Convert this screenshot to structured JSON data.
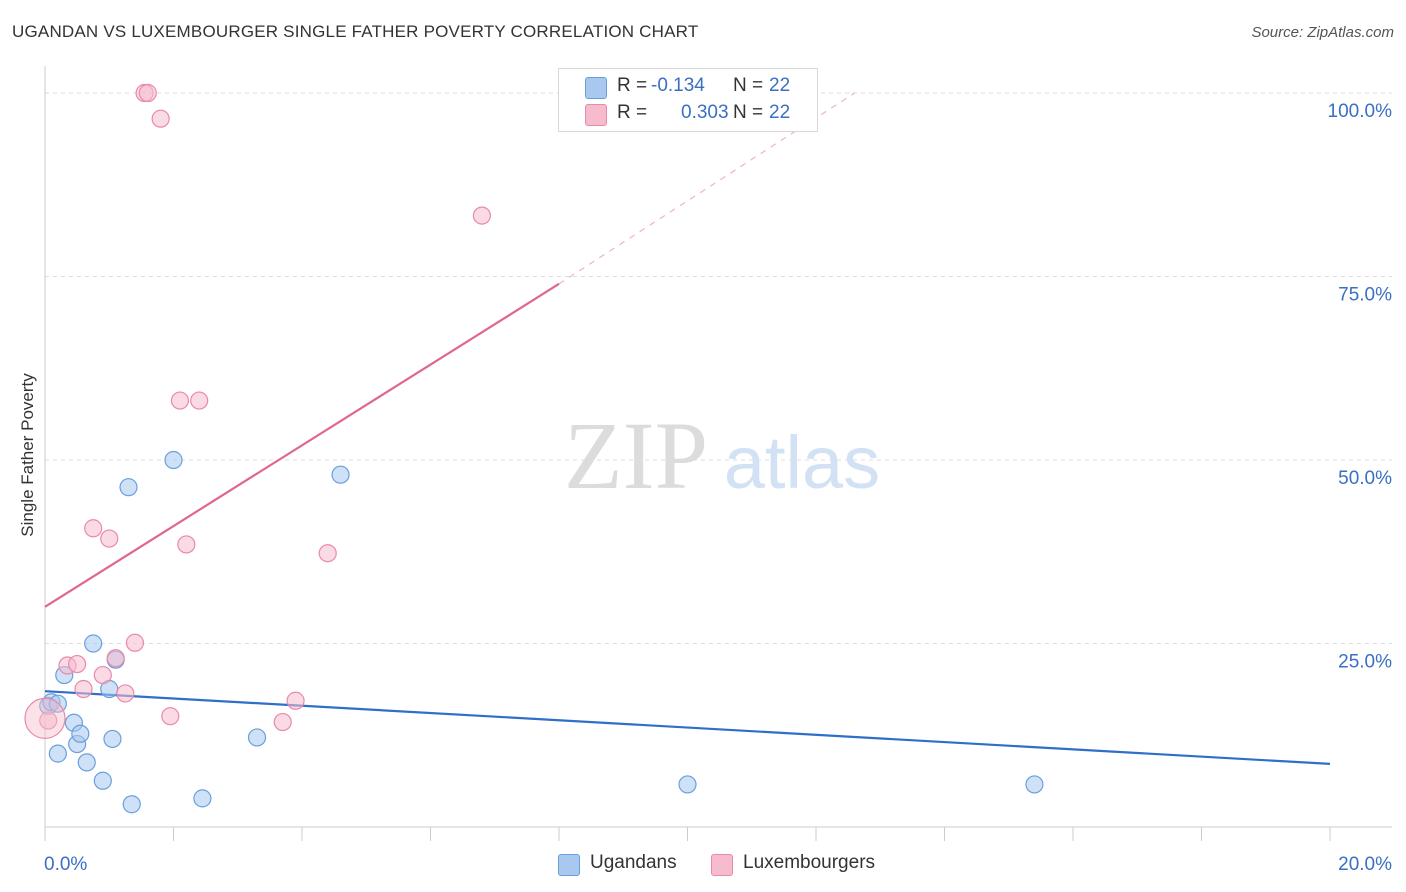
{
  "header": {
    "title": "UGANDAN VS LUXEMBOURGER SINGLE FATHER POVERTY CORRELATION CHART",
    "source": "Source: ZipAtlas.com"
  },
  "watermark": {
    "zip": "ZIP",
    "atlas": "atlas"
  },
  "colors": {
    "ugandans_fill": "#a8c8f0",
    "ugandans_stroke": "#6a9fdc",
    "ugandans_line": "#2f6fc9",
    "luxembourgers_fill": "#f6bccd",
    "luxembourgers_stroke": "#e98aa8",
    "luxembourgers_line": "#e06690",
    "tick_label": "#3a6fc4"
  },
  "legend": {
    "r_label": "R =",
    "n_label": "N =",
    "items": [
      {
        "r": "-0.134",
        "n": "22"
      },
      {
        "r": "0.303",
        "n": "22"
      }
    ]
  },
  "chart_data": {
    "type": "scatter",
    "title": "UGANDAN VS LUXEMBOURGER SINGLE FATHER POVERTY CORRELATION CHART",
    "xlabel": "",
    "ylabel": "Single Father Poverty",
    "xlim": [
      0,
      20
    ],
    "ylim": [
      0,
      103
    ],
    "x_tick_labels": [
      "0.0%",
      "20.0%"
    ],
    "y_ticks": [
      25,
      50,
      75,
      100
    ],
    "y_tick_labels": [
      "25.0%",
      "50.0%",
      "75.0%",
      "100.0%"
    ],
    "grid": "horizontal dashed",
    "legend_position": "top-center",
    "series": [
      {
        "name": "Ugandans",
        "r": -0.134,
        "n": 22,
        "trend": {
          "x": [
            0,
            20
          ],
          "y": [
            18.5,
            8.6
          ]
        },
        "points": [
          {
            "x": 0.05,
            "y": 16.5
          },
          {
            "x": 0.1,
            "y": 17.0
          },
          {
            "x": 0.2,
            "y": 16.8
          },
          {
            "x": 0.2,
            "y": 10.0
          },
          {
            "x": 0.3,
            "y": 20.7
          },
          {
            "x": 0.45,
            "y": 14.2
          },
          {
            "x": 0.5,
            "y": 11.3
          },
          {
            "x": 0.55,
            "y": 12.7
          },
          {
            "x": 0.65,
            "y": 8.8
          },
          {
            "x": 0.75,
            "y": 25.0
          },
          {
            "x": 0.9,
            "y": 6.3
          },
          {
            "x": 1.0,
            "y": 18.8
          },
          {
            "x": 1.05,
            "y": 12.0
          },
          {
            "x": 1.1,
            "y": 22.8
          },
          {
            "x": 1.3,
            "y": 46.3
          },
          {
            "x": 1.35,
            "y": 3.1
          },
          {
            "x": 2.0,
            "y": 50.0
          },
          {
            "x": 2.45,
            "y": 3.9
          },
          {
            "x": 3.3,
            "y": 12.2
          },
          {
            "x": 4.6,
            "y": 48.0
          },
          {
            "x": 10.0,
            "y": 5.8
          },
          {
            "x": 15.4,
            "y": 5.8
          }
        ]
      },
      {
        "name": "Luxembourgers",
        "r": 0.303,
        "n": 22,
        "trend": {
          "x": [
            0,
            8.0,
            12.6
          ],
          "y": [
            30.0,
            74.0,
            100.0
          ]
        },
        "points": [
          {
            "x": 0.05,
            "y": 14.5
          },
          {
            "x": 0.35,
            "y": 22.0
          },
          {
            "x": 0.5,
            "y": 22.2
          },
          {
            "x": 0.6,
            "y": 18.8
          },
          {
            "x": 0.75,
            "y": 40.7
          },
          {
            "x": 0.9,
            "y": 20.7
          },
          {
            "x": 1.0,
            "y": 39.3
          },
          {
            "x": 1.1,
            "y": 23.0
          },
          {
            "x": 1.25,
            "y": 18.2
          },
          {
            "x": 1.4,
            "y": 25.1
          },
          {
            "x": 1.55,
            "y": 100.0
          },
          {
            "x": 1.6,
            "y": 100.0
          },
          {
            "x": 1.8,
            "y": 96.5
          },
          {
            "x": 1.95,
            "y": 15.1
          },
          {
            "x": 2.1,
            "y": 58.1
          },
          {
            "x": 2.2,
            "y": 38.5
          },
          {
            "x": 2.4,
            "y": 58.1
          },
          {
            "x": 3.7,
            "y": 14.3
          },
          {
            "x": 3.9,
            "y": 17.2
          },
          {
            "x": 4.4,
            "y": 37.3
          },
          {
            "x": 6.8,
            "y": 83.3
          },
          {
            "x": 0.0,
            "y": 14.8
          }
        ]
      }
    ]
  }
}
